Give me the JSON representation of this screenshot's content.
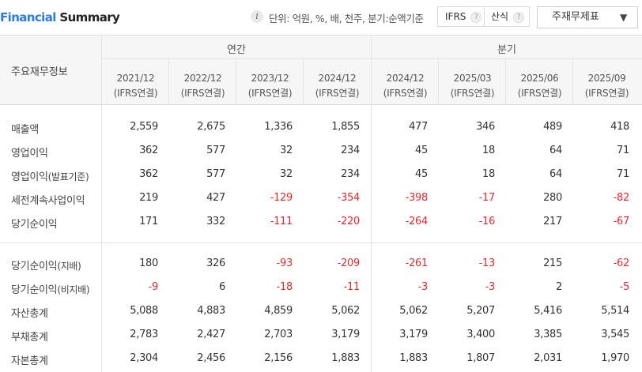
{
  "header": {
    "title_accent": "Financial",
    "title_rest": "Summary",
    "info_icon": "info-icon",
    "unit_text": "단위: 억원, %, 배, 천주, 분기:순액기준",
    "options": [
      {
        "label": "IFRS",
        "help": "?"
      },
      {
        "label": "산식",
        "help": "?"
      }
    ],
    "statement_select": {
      "value": "주재무제표",
      "icon": "chevron-down-icon"
    }
  },
  "table": {
    "row_header_title": "주요재무정보",
    "groups": [
      {
        "label": "연간"
      },
      {
        "label": "분기"
      }
    ],
    "columns": [
      {
        "period": "2021/12",
        "basis": "(IFRS연결)"
      },
      {
        "period": "2022/12",
        "basis": "(IFRS연결)"
      },
      {
        "period": "2023/12",
        "basis": "(IFRS연결)"
      },
      {
        "period": "2024/12",
        "basis": "(IFRS연결)"
      },
      {
        "period": "2024/12",
        "basis": "(IFRS연결)"
      },
      {
        "period": "2025/03",
        "basis": "(IFRS연결)"
      },
      {
        "period": "2025/06",
        "basis": "(IFRS연결)"
      },
      {
        "period": "2025/09",
        "basis": "(IFRS연결)"
      }
    ],
    "rows": [
      {
        "label": "매출액",
        "sub": "",
        "values": [
          "2,559",
          "2,675",
          "1,336",
          "1,855",
          "477",
          "346",
          "489",
          "418"
        ]
      },
      {
        "label": "영업이익",
        "sub": "",
        "values": [
          "362",
          "577",
          "32",
          "234",
          "45",
          "18",
          "64",
          "71"
        ]
      },
      {
        "label": "영업이익",
        "sub": "(발표기준)",
        "values": [
          "362",
          "577",
          "32",
          "234",
          "45",
          "18",
          "64",
          "71"
        ]
      },
      {
        "label": "세전계속사업이익",
        "sub": "",
        "values": [
          "219",
          "427",
          "-129",
          "-354",
          "-398",
          "-17",
          "280",
          "-82"
        ]
      },
      {
        "label": "당기순이익",
        "sub": "",
        "values": [
          "171",
          "332",
          "-111",
          "-220",
          "-264",
          "-16",
          "217",
          "-67"
        ]
      },
      {
        "label": "당기순이익",
        "sub": "(지배)",
        "values": [
          "180",
          "326",
          "-93",
          "-209",
          "-261",
          "-13",
          "215",
          "-62"
        ]
      },
      {
        "label": "당기순이익",
        "sub": "(비지배)",
        "values": [
          "-9",
          "6",
          "-18",
          "-11",
          "-3",
          "-3",
          "2",
          "-5"
        ]
      },
      {
        "label": "자산총계",
        "sub": "",
        "values": [
          "5,088",
          "4,883",
          "4,859",
          "5,062",
          "5,062",
          "5,207",
          "5,416",
          "5,514"
        ]
      },
      {
        "label": "부채총계",
        "sub": "",
        "values": [
          "2,783",
          "2,427",
          "2,703",
          "3,179",
          "3,179",
          "3,400",
          "3,385",
          "3,545"
        ]
      },
      {
        "label": "자본총계",
        "sub": "",
        "values": [
          "2,304",
          "2,456",
          "2,156",
          "1,883",
          "1,883",
          "1,807",
          "2,031",
          "1,970"
        ]
      }
    ],
    "negative_color": "#e5282d"
  }
}
